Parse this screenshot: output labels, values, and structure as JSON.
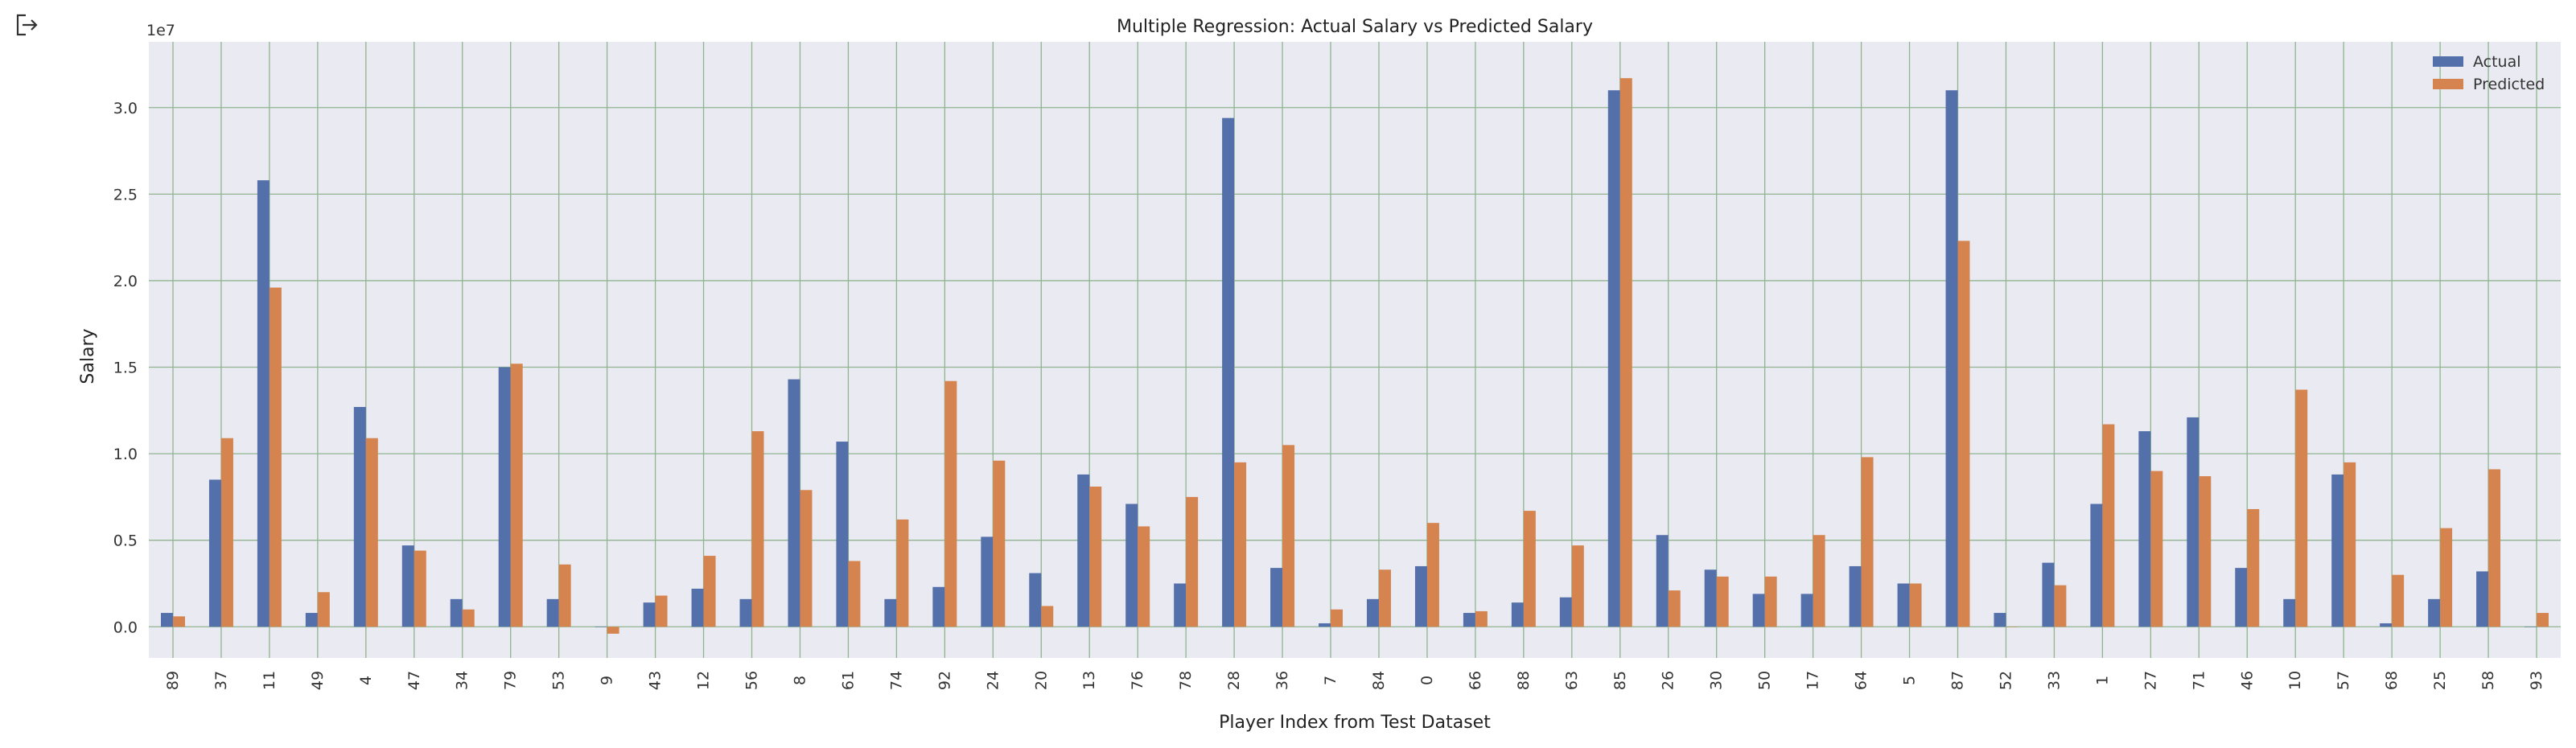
{
  "toolbar": {
    "icon": "output-export-icon"
  },
  "chart_data": {
    "type": "bar",
    "title": "Multiple Regression: Actual Salary vs Predicted Salary",
    "xlabel": "Player Index from Test Dataset",
    "ylabel": "Salary",
    "y_offset_text": "1e7",
    "ylim": [
      -1800000,
      33800000
    ],
    "y_ticks": [
      0,
      5000000,
      10000000,
      15000000,
      20000000,
      25000000,
      30000000
    ],
    "y_tick_labels": [
      "0.0",
      "0.5",
      "1.0",
      "1.5",
      "2.0",
      "2.5",
      "3.0"
    ],
    "grid": true,
    "legend_position": "top-right",
    "categories": [
      "89",
      "37",
      "11",
      "49",
      "4",
      "47",
      "34",
      "79",
      "53",
      "9",
      "43",
      "12",
      "56",
      "8",
      "61",
      "74",
      "92",
      "24",
      "20",
      "13",
      "76",
      "78",
      "28",
      "36",
      "7",
      "84",
      "0",
      "66",
      "88",
      "63",
      "85",
      "26",
      "30",
      "50",
      "17",
      "64",
      "5",
      "87",
      "52",
      "33",
      "1",
      "27",
      "71",
      "46",
      "10",
      "57",
      "68",
      "25",
      "58",
      "93"
    ],
    "series": [
      {
        "name": "Actual",
        "color": "#5470ab",
        "values": [
          800000,
          8500000,
          25800000,
          800000,
          12700000,
          4700000,
          1600000,
          15000000,
          1600000,
          0,
          1400000,
          2200000,
          1600000,
          14300000,
          10700000,
          1600000,
          2300000,
          5200000,
          3100000,
          8800000,
          7100000,
          2500000,
          29400000,
          3400000,
          200000,
          1600000,
          3500000,
          800000,
          1400000,
          1700000,
          31000000,
          5300000,
          3300000,
          1900000,
          1900000,
          3500000,
          2500000,
          31000000,
          800000,
          3700000,
          7100000,
          11300000,
          12100000,
          3400000,
          1600000,
          8800000,
          200000,
          1600000,
          3200000,
          0
        ]
      },
      {
        "name": "Predicted",
        "color": "#d6844f",
        "values": [
          600000,
          10900000,
          19600000,
          2000000,
          10900000,
          4400000,
          1000000,
          15200000,
          3600000,
          -400000,
          1800000,
          4100000,
          11300000,
          7900000,
          3800000,
          6200000,
          14200000,
          9600000,
          1200000,
          8100000,
          5800000,
          7500000,
          9500000,
          10500000,
          1000000,
          3300000,
          6000000,
          900000,
          6700000,
          4700000,
          31700000,
          2100000,
          2900000,
          2900000,
          5300000,
          9800000,
          2500000,
          22300000,
          0,
          2400000,
          11700000,
          9000000,
          8700000,
          6800000,
          13700000,
          9500000,
          3000000,
          5700000,
          9100000,
          800000
        ]
      }
    ]
  }
}
